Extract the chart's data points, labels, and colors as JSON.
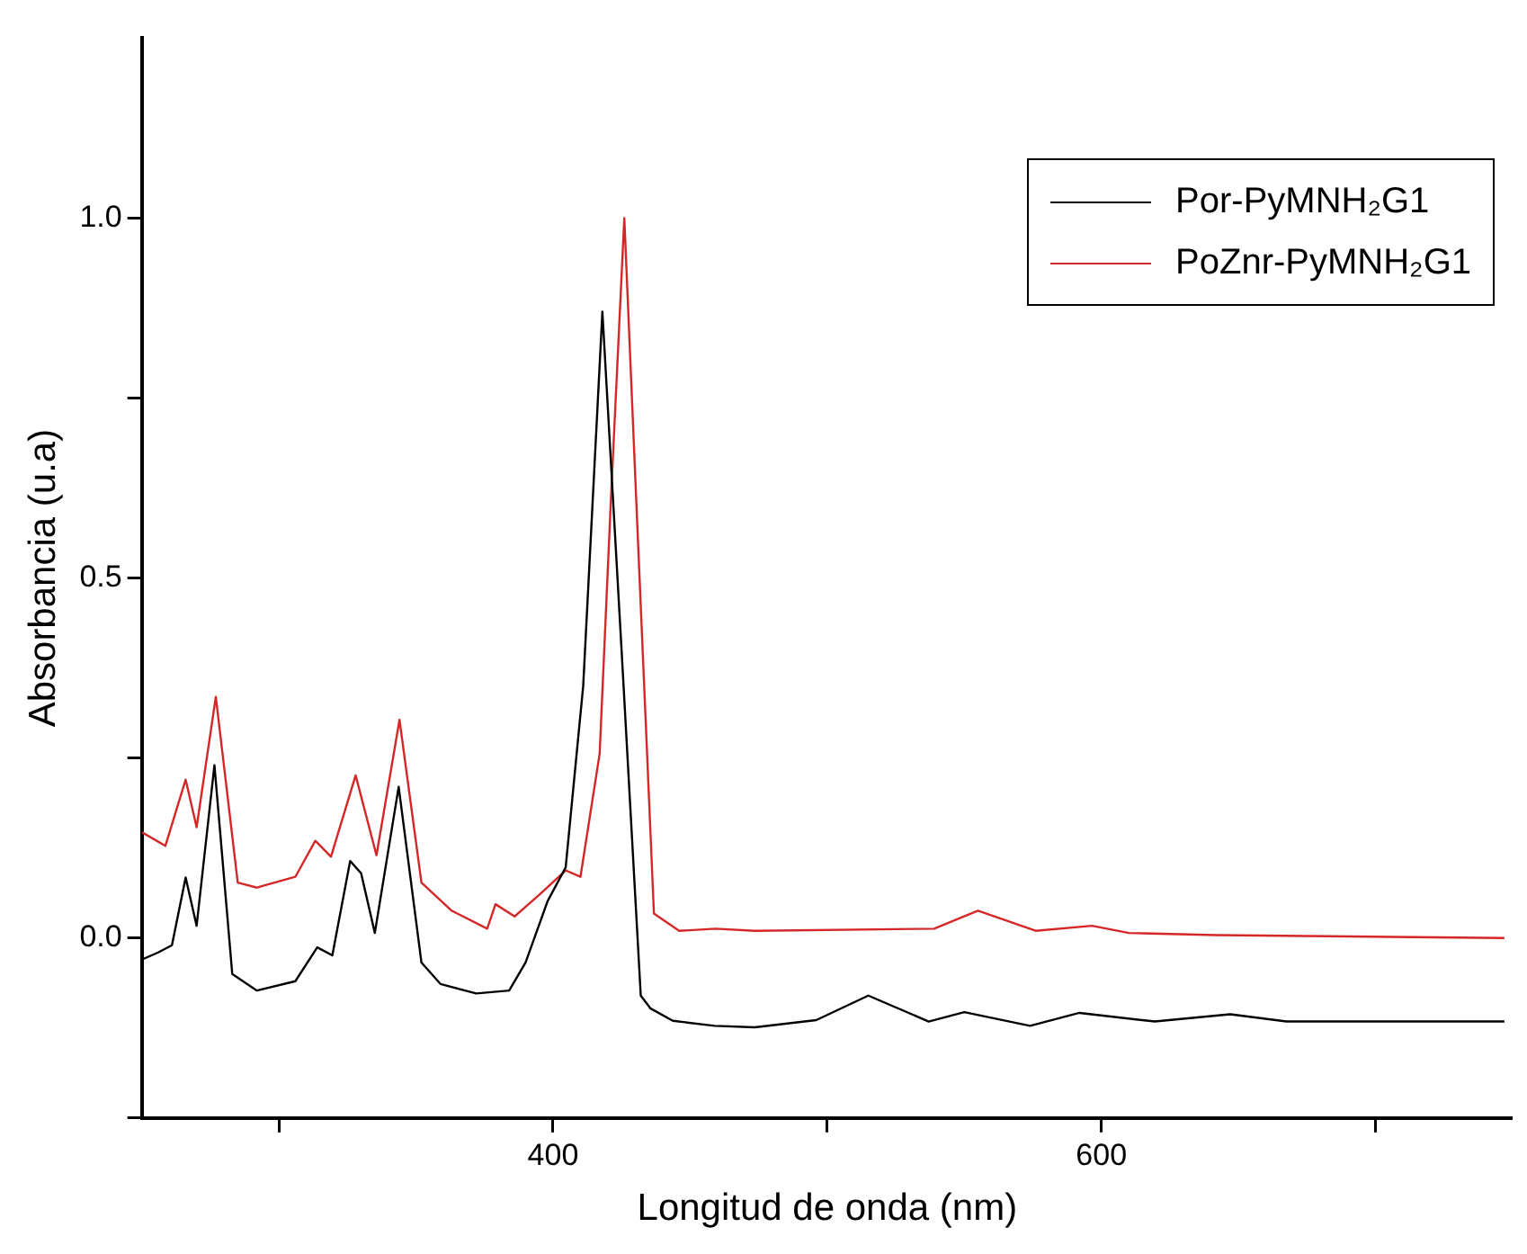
{
  "chart_data": {
    "type": "line",
    "xlabel": "Longitud de onda (nm)",
    "ylabel": "Absorbancia (u.a)",
    "xlim": [
      250,
      750
    ],
    "ylim": [
      -0.25,
      1.25
    ],
    "xticks": [
      {
        "value": 300,
        "label": null
      },
      400,
      {
        "value": 500,
        "label": null
      },
      600,
      {
        "value": 700,
        "label": null
      }
    ],
    "yticks": [
      {
        "value": -0.25,
        "label": null
      },
      {
        "value": 0,
        "label": "0.0"
      },
      {
        "value": 0.25,
        "label": null
      },
      {
        "value": 0.5,
        "label": "0.5"
      },
      {
        "value": 0.75,
        "label": null
      },
      {
        "value": 1,
        "label": "1.0"
      }
    ],
    "grid": false,
    "legend": "top right",
    "marker": "none",
    "line_style": "solid",
    "series": [
      {
        "name": "Por-PyMNH₂G1",
        "color": "#000000",
        "x": [
          250,
          256,
          261,
          266,
          270,
          276.5,
          283,
          292,
          306,
          314,
          319.5,
          326,
          330,
          335,
          343.7,
          352,
          359,
          372,
          384,
          390,
          398,
          404.6,
          411,
          418,
          425,
          432,
          435.6,
          443.7,
          459,
          473.6,
          496,
          515,
          537,
          550,
          574,
          592,
          619.5,
          647,
          667.5,
          747
        ],
        "values": [
          -0.03,
          -0.02,
          -0.01,
          0.084,
          0.017,
          0.24,
          -0.05,
          -0.073,
          -0.06,
          -0.013,
          -0.024,
          0.107,
          0.09,
          0.007,
          0.21,
          -0.034,
          -0.064,
          -0.077,
          -0.073,
          -0.034,
          0.051,
          0.098,
          0.35,
          0.87,
          0.4,
          -0.08,
          -0.098,
          -0.115,
          -0.122,
          -0.124,
          -0.114,
          -0.08,
          -0.116,
          -0.103,
          -0.122,
          -0.104,
          -0.116,
          -0.106,
          -0.116,
          -0.116
        ]
      },
      {
        "name": "PoZnr-PyMNH₂G1",
        "color": "#d62728",
        "x": [
          250,
          258.6,
          266,
          270,
          277,
          285,
          292,
          306,
          313.3,
          319,
          328,
          335.6,
          344,
          352,
          363,
          376,
          379,
          386,
          395,
          404.6,
          410,
          417,
          421,
          426,
          431,
          436.8,
          446,
          459.3,
          473.6,
          539,
          555,
          576,
          596.6,
          610,
          642,
          747
        ],
        "values": [
          0.147,
          0.128,
          0.22,
          0.154,
          0.335,
          0.077,
          0.07,
          0.085,
          0.135,
          0.113,
          0.226,
          0.115,
          0.303,
          0.077,
          0.038,
          0.013,
          0.047,
          0.03,
          0.06,
          0.094,
          0.085,
          0.256,
          0.6,
          1.0,
          0.55,
          0.034,
          0.01,
          0.013,
          0.01,
          0.013,
          0.038,
          0.01,
          0.017,
          0.007,
          0.004,
          0.0
        ]
      }
    ]
  }
}
